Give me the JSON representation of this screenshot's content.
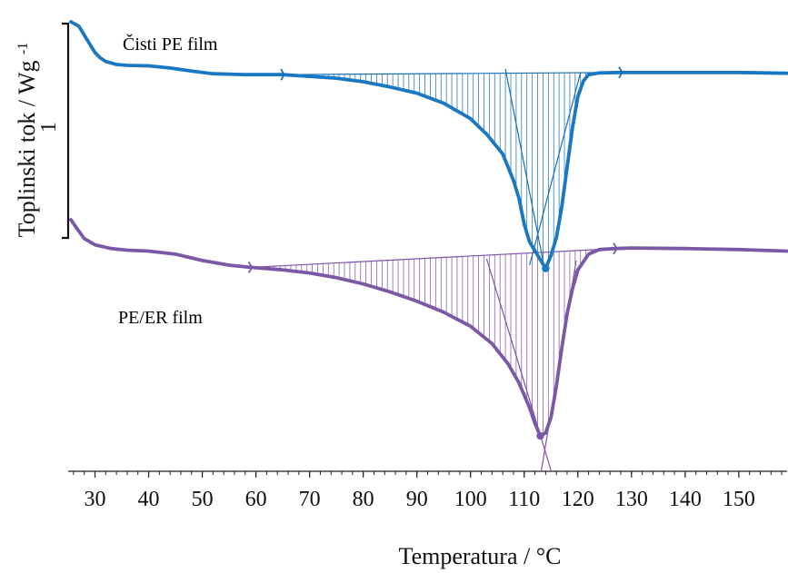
{
  "chart_data": {
    "type": "line",
    "title": "",
    "xlabel": "Temperatura / °C",
    "ylabel": "Toplinski tok / Wg",
    "ylabel_superscript": "-1",
    "scale_bar_label": "1",
    "xlim": [
      25,
      159
    ],
    "x_ticks": [
      30,
      40,
      50,
      60,
      70,
      80,
      90,
      100,
      110,
      120,
      130,
      140,
      150
    ],
    "x_tick_labels": [
      "30",
      "40",
      "50",
      "60",
      "70",
      "80",
      "90",
      "100",
      "110",
      "120",
      "130",
      "140",
      "150"
    ],
    "legend": "inline labels",
    "grid": false,
    "series": [
      {
        "name": "Čisti PE film",
        "color": "#1a78c2",
        "hatch_color": "#1a6fb5",
        "integration_start": 65,
        "integration_end": 128,
        "peak_temperature": 114,
        "points": [
          [
            25.5,
            0.0
          ],
          [
            27,
            0.1
          ],
          [
            29,
            0.5
          ],
          [
            30,
            0.7
          ],
          [
            31,
            0.82
          ],
          [
            32,
            0.9
          ],
          [
            34,
            0.97
          ],
          [
            36,
            0.99
          ],
          [
            40,
            1.0
          ],
          [
            44,
            1.05
          ],
          [
            48,
            1.12
          ],
          [
            52,
            1.18
          ],
          [
            58,
            1.2
          ],
          [
            65,
            1.2
          ],
          [
            70,
            1.24
          ],
          [
            75,
            1.28
          ],
          [
            80,
            1.36
          ],
          [
            85,
            1.48
          ],
          [
            90,
            1.62
          ],
          [
            95,
            1.85
          ],
          [
            100,
            2.2
          ],
          [
            103,
            2.55
          ],
          [
            106,
            3.0
          ],
          [
            108,
            3.6
          ],
          [
            109,
            4.0
          ],
          [
            110,
            4.6
          ],
          [
            111,
            5.0
          ],
          [
            112,
            5.2
          ],
          [
            113,
            5.4
          ],
          [
            114,
            5.6
          ],
          [
            115,
            5.3
          ],
          [
            116,
            4.9
          ],
          [
            117,
            4.2
          ],
          [
            118,
            3.3
          ],
          [
            119,
            2.4
          ],
          [
            120,
            1.7
          ],
          [
            121,
            1.35
          ],
          [
            122,
            1.2
          ],
          [
            124,
            1.16
          ],
          [
            128,
            1.15
          ],
          [
            140,
            1.15
          ],
          [
            150,
            1.15
          ],
          [
            159,
            1.17
          ]
        ]
      },
      {
        "name": "PE/ER film",
        "color": "#7b58a6",
        "hatch_color": "#7a55ab",
        "integration_start": 59,
        "integration_end": 127,
        "peak_temperature": 113,
        "points": [
          [
            25.5,
            0.0
          ],
          [
            26.5,
            0.25
          ],
          [
            28,
            0.6
          ],
          [
            30,
            0.8
          ],
          [
            33,
            0.92
          ],
          [
            36,
            0.97
          ],
          [
            40,
            1.0
          ],
          [
            45,
            1.1
          ],
          [
            50,
            1.3
          ],
          [
            55,
            1.45
          ],
          [
            59,
            1.52
          ],
          [
            65,
            1.6
          ],
          [
            70,
            1.7
          ],
          [
            75,
            1.85
          ],
          [
            80,
            2.05
          ],
          [
            85,
            2.3
          ],
          [
            90,
            2.6
          ],
          [
            95,
            2.95
          ],
          [
            100,
            3.4
          ],
          [
            104,
            3.95
          ],
          [
            107,
            4.6
          ],
          [
            109,
            5.2
          ],
          [
            110,
            5.6
          ],
          [
            111,
            6.0
          ],
          [
            112,
            6.5
          ],
          [
            113,
            6.9
          ],
          [
            114,
            6.8
          ],
          [
            115,
            6.3
          ],
          [
            116,
            5.3
          ],
          [
            117,
            4.1
          ],
          [
            118,
            3.0
          ],
          [
            119,
            2.2
          ],
          [
            120,
            1.6
          ],
          [
            122,
            1.1
          ],
          [
            124,
            0.95
          ],
          [
            127,
            0.92
          ],
          [
            130,
            0.9
          ],
          [
            140,
            0.92
          ],
          [
            150,
            0.95
          ],
          [
            159,
            1.0
          ]
        ]
      }
    ]
  }
}
